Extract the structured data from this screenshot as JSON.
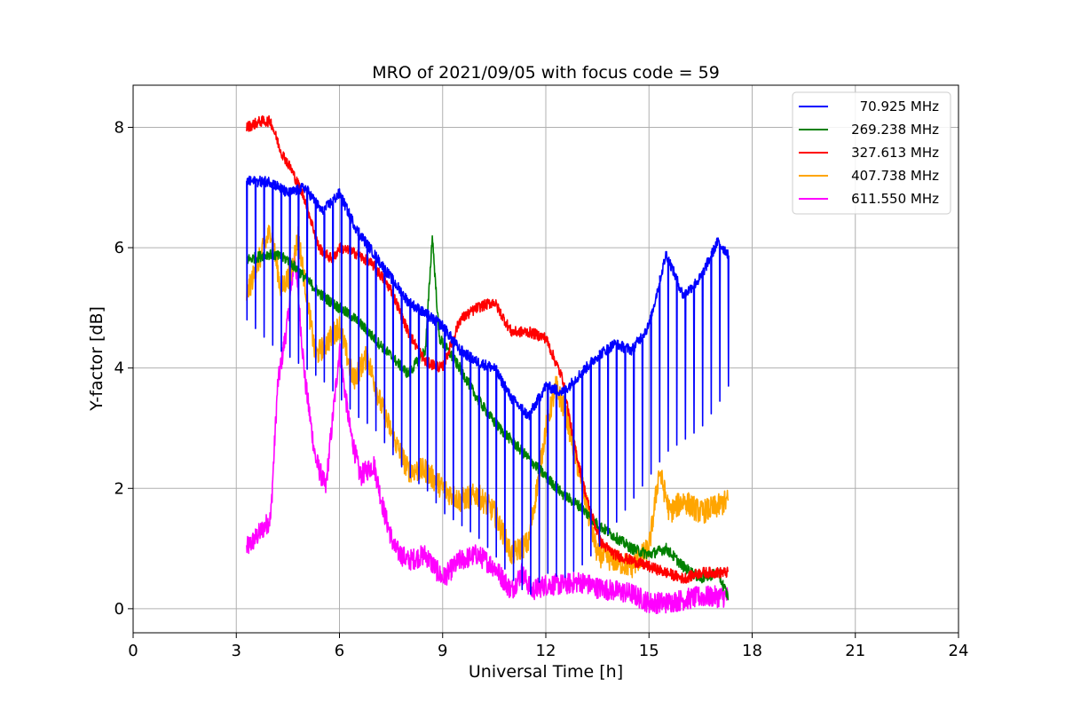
{
  "chart_data": {
    "type": "line",
    "title": "MRO of 2021/09/05 with focus code = 59",
    "xlabel": "Universal Time [h]",
    "ylabel": "Y-factor [dB]",
    "xlim": [
      0,
      24
    ],
    "ylim": [
      -0.4,
      8.7
    ],
    "xticks": [
      0,
      3,
      6,
      9,
      12,
      15,
      18,
      21,
      24
    ],
    "xtick_labels": [
      "0",
      "3",
      "6",
      "9",
      "12",
      "15",
      "18",
      "21",
      "24"
    ],
    "yticks": [
      0,
      2,
      4,
      6,
      8
    ],
    "ytick_labels": [
      "0",
      "2",
      "4",
      "6",
      "8"
    ],
    "grid": true,
    "legend_position": "top-right",
    "series": [
      {
        "name": "70.925 MHz",
        "color": "#0000ff",
        "x": [
          3.3,
          4.0,
          4.5,
          5.0,
          5.5,
          6.0,
          6.5,
          7.0,
          7.5,
          8.0,
          8.5,
          9.0,
          9.5,
          10.0,
          10.5,
          11.0,
          11.5,
          12.0,
          12.5,
          13.0,
          13.5,
          14.0,
          14.5,
          15.0,
          15.5,
          16.0,
          16.5,
          17.0,
          17.3
        ],
        "y": [
          7.1,
          7.1,
          6.9,
          7.0,
          6.6,
          6.9,
          6.3,
          5.9,
          5.5,
          5.1,
          4.9,
          4.7,
          4.3,
          4.1,
          4.0,
          3.5,
          3.2,
          3.7,
          3.6,
          3.9,
          4.2,
          4.4,
          4.3,
          4.7,
          5.9,
          5.2,
          5.5,
          6.1,
          5.9
        ],
        "dip_to": [
          4.8,
          4.4,
          4.2,
          4.0,
          3.8,
          3.5,
          3.2,
          3.0,
          2.6,
          2.2,
          2.0,
          1.6,
          1.4,
          1.2,
          0.9,
          0.5,
          0.2,
          0.6,
          0.5,
          0.7,
          1.0,
          1.4,
          1.8,
          2.2,
          2.6,
          2.8,
          3.0,
          3.4,
          3.7
        ]
      },
      {
        "name": "269.238 MHz",
        "color": "#008000",
        "x": [
          3.3,
          4.0,
          4.5,
          5.0,
          5.5,
          6.0,
          6.5,
          7.0,
          7.5,
          8.0,
          8.5,
          8.7,
          8.9,
          9.5,
          10.0,
          10.5,
          11.0,
          11.5,
          12.0,
          12.5,
          13.0,
          13.5,
          14.0,
          14.5,
          15.0,
          15.5,
          16.0,
          16.5,
          17.0,
          17.3
        ],
        "y": [
          5.8,
          5.9,
          5.8,
          5.5,
          5.2,
          5.0,
          4.8,
          4.5,
          4.2,
          3.9,
          4.3,
          6.2,
          4.5,
          4.0,
          3.5,
          3.1,
          2.8,
          2.5,
          2.2,
          1.9,
          1.7,
          1.4,
          1.2,
          1.0,
          0.9,
          1.0,
          0.7,
          0.5,
          0.6,
          0.2
        ]
      },
      {
        "name": "327.613 MHz",
        "color": "#ff0000",
        "x": [
          3.3,
          3.7,
          4.0,
          4.3,
          4.6,
          5.0,
          5.4,
          5.8,
          6.0,
          6.5,
          7.0,
          7.5,
          8.0,
          8.5,
          9.0,
          9.5,
          10.0,
          10.5,
          11.0,
          11.5,
          12.0,
          12.5,
          12.8,
          13.2,
          13.6,
          14.0,
          14.5,
          15.0,
          15.5,
          16.0,
          16.5,
          17.0,
          17.3
        ],
        "y": [
          8.0,
          8.1,
          8.1,
          7.6,
          7.3,
          6.8,
          6.0,
          5.8,
          6.0,
          5.9,
          5.7,
          5.3,
          4.6,
          4.1,
          4.0,
          4.8,
          5.0,
          5.1,
          4.6,
          4.6,
          4.5,
          3.8,
          2.8,
          1.8,
          1.1,
          0.9,
          0.8,
          0.7,
          0.6,
          0.5,
          0.6,
          0.6,
          0.6
        ]
      },
      {
        "name": "407.738 MHz",
        "color": "#ffa500",
        "x": [
          3.3,
          3.6,
          4.0,
          4.3,
          4.6,
          4.8,
          5.0,
          5.3,
          5.6,
          6.0,
          6.4,
          6.8,
          7.2,
          7.6,
          8.0,
          8.5,
          9.0,
          9.5,
          10.0,
          10.5,
          11.0,
          11.5,
          12.0,
          12.3,
          12.6,
          13.0,
          13.5,
          14.0,
          14.5,
          15.0,
          15.3,
          15.6,
          16.0,
          16.5,
          17.0,
          17.3
        ],
        "y": [
          5.2,
          5.7,
          6.3,
          5.3,
          5.6,
          6.2,
          5.4,
          4.2,
          4.4,
          4.7,
          3.8,
          4.2,
          3.4,
          2.8,
          2.3,
          2.3,
          2.0,
          1.8,
          1.9,
          1.6,
          0.9,
          1.1,
          3.0,
          3.7,
          3.2,
          2.2,
          0.9,
          0.8,
          0.7,
          1.0,
          2.3,
          1.6,
          1.8,
          1.6,
          1.7,
          1.8
        ]
      },
      {
        "name": "611.550 MHz",
        "color": "#ff00ff",
        "x": [
          3.3,
          3.6,
          4.0,
          4.2,
          4.5,
          4.7,
          5.0,
          5.3,
          5.6,
          6.0,
          6.3,
          6.6,
          7.0,
          7.3,
          7.6,
          8.0,
          8.5,
          9.0,
          9.5,
          10.0,
          10.5,
          11.0,
          11.3,
          11.6,
          12.0,
          12.5,
          13.0,
          13.5,
          14.0,
          14.5,
          15.0,
          15.5,
          16.0,
          16.5,
          17.0,
          17.3
        ],
        "y": [
          1.0,
          1.2,
          1.5,
          3.7,
          4.8,
          5.9,
          3.8,
          2.5,
          2.0,
          4.3,
          3.0,
          2.2,
          2.4,
          1.6,
          1.0,
          0.8,
          0.9,
          0.5,
          0.8,
          0.9,
          0.7,
          0.3,
          0.6,
          0.3,
          0.4,
          0.4,
          0.45,
          0.35,
          0.3,
          0.25,
          0.1,
          0.1,
          0.15,
          0.2,
          0.2,
          0.2
        ]
      }
    ]
  }
}
